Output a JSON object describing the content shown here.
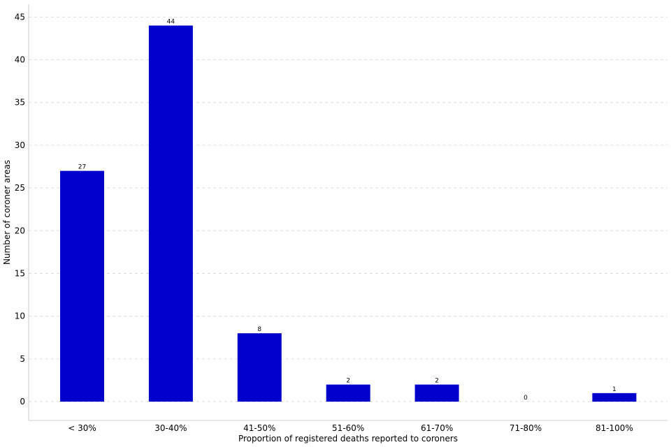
{
  "chart_data": {
    "type": "bar",
    "categories": [
      "< 30%",
      "30-40%",
      "41-50%",
      "51-60%",
      "61-70%",
      "71-80%",
      "81-100%"
    ],
    "values": [
      27,
      44,
      8,
      2,
      2,
      0,
      1
    ],
    "data_labels": [
      "27",
      "44",
      "8",
      "2",
      "2",
      "0",
      "1"
    ],
    "xlabel": "Proportion of registered deaths reported to coroners",
    "ylabel": "Number of coroner areas",
    "ylim": [
      -2.2,
      46.5
    ],
    "yticks": [
      0,
      5,
      10,
      15,
      20,
      25,
      30,
      35,
      40,
      45
    ],
    "grid": true,
    "bar_color": "#0000cd",
    "grid_color": "#dddddd"
  }
}
